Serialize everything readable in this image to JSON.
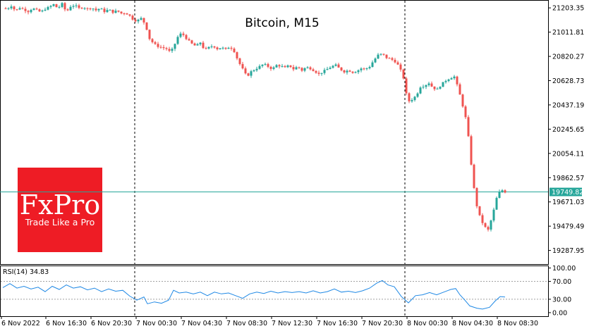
{
  "chart_data": [
    {
      "type": "candlestick",
      "title": "Bitcoin, M15",
      "ylim": [
        19180,
        21260
      ],
      "y_ticks": [
        "21203.35",
        "21011.81",
        "20820.27",
        "20628.73",
        "20437.19",
        "20245.65",
        "20054.11",
        "19862.57",
        "19671.03",
        "19479.49",
        "19287.95"
      ],
      "y_tick_values": [
        21203.35,
        21011.81,
        20820.27,
        20628.73,
        20437.19,
        20245.65,
        20054.11,
        19862.57,
        19671.03,
        19479.49,
        19287.95
      ],
      "current_price": 19749.82,
      "current_price_label": "19749.82",
      "x_ticks": [
        "6 Nov 2022",
        "6 Nov 16:30",
        "6 Nov 20:30",
        "7 Nov 00:30",
        "7 Nov 04:30",
        "7 Nov 08:30",
        "7 Nov 12:30",
        "7 Nov 16:30",
        "7 Nov 20:30",
        "8 Nov 00:30",
        "8 Nov 04:30",
        "8 Nov 08:30"
      ],
      "session_separators": [
        "7 Nov 00:00",
        "8 Nov 00:00"
      ],
      "close_path": [
        [
          0,
          21200
        ],
        [
          6,
          21195
        ],
        [
          12,
          21220
        ],
        [
          18,
          21180
        ],
        [
          24,
          21205
        ],
        [
          30,
          21190
        ],
        [
          36,
          21175
        ],
        [
          42,
          21200
        ],
        [
          48,
          21185
        ],
        [
          54,
          21170
        ],
        [
          60,
          21195
        ],
        [
          66,
          21210
        ],
        [
          72,
          21230
        ],
        [
          78,
          21200
        ],
        [
          84,
          21235
        ],
        [
          90,
          21170
        ],
        [
          96,
          21215
        ],
        [
          102,
          21225
        ],
        [
          108,
          21200
        ],
        [
          114,
          21210
        ],
        [
          120,
          21195
        ],
        [
          126,
          21205
        ],
        [
          132,
          21185
        ],
        [
          138,
          21200
        ],
        [
          144,
          21175
        ],
        [
          150,
          21190
        ],
        [
          156,
          21170
        ],
        [
          162,
          21180
        ],
        [
          168,
          21160
        ],
        [
          174,
          21165
        ],
        [
          180,
          21140
        ],
        [
          185,
          21110
        ],
        [
          190,
          21100
        ],
        [
          196,
          21120
        ],
        [
          202,
          21075
        ],
        [
          208,
          20960
        ],
        [
          214,
          20920
        ],
        [
          220,
          20900
        ],
        [
          226,
          20890
        ],
        [
          232,
          20880
        ],
        [
          238,
          20850
        ],
        [
          244,
          20920
        ],
        [
          250,
          21000
        ],
        [
          256,
          20990
        ],
        [
          262,
          20950
        ],
        [
          268,
          20920
        ],
        [
          274,
          20900
        ],
        [
          280,
          20930
        ],
        [
          286,
          20870
        ],
        [
          292,
          20890
        ],
        [
          298,
          20905
        ],
        [
          304,
          20880
        ],
        [
          310,
          20890
        ],
        [
          316,
          20875
        ],
        [
          322,
          20900
        ],
        [
          328,
          20860
        ],
        [
          334,
          20780
        ],
        [
          340,
          20720
        ],
        [
          346,
          20660
        ],
        [
          352,
          20700
        ],
        [
          358,
          20720
        ],
        [
          364,
          20740
        ],
        [
          370,
          20760
        ],
        [
          376,
          20740
        ],
        [
          382,
          20720
        ],
        [
          388,
          20750
        ],
        [
          394,
          20745
        ],
        [
          400,
          20730
        ],
        [
          406,
          20750
        ],
        [
          412,
          20720
        ],
        [
          418,
          20740
        ],
        [
          424,
          20710
        ],
        [
          430,
          20735
        ],
        [
          436,
          20725
        ],
        [
          442,
          20705
        ],
        [
          448,
          20680
        ],
        [
          454,
          20700
        ],
        [
          460,
          20720
        ],
        [
          466,
          20740
        ],
        [
          472,
          20750
        ],
        [
          478,
          20720
        ],
        [
          484,
          20700
        ],
        [
          490,
          20710
        ],
        [
          496,
          20695
        ],
        [
          502,
          20705
        ],
        [
          508,
          20725
        ],
        [
          514,
          20720
        ],
        [
          520,
          20740
        ],
        [
          526,
          20790
        ],
        [
          532,
          20830
        ],
        [
          538,
          20840
        ],
        [
          544,
          20810
        ],
        [
          550,
          20800
        ],
        [
          556,
          20780
        ],
        [
          562,
          20740
        ],
        [
          568,
          20650
        ],
        [
          574,
          20460
        ],
        [
          580,
          20480
        ],
        [
          586,
          20510
        ],
        [
          592,
          20580
        ],
        [
          598,
          20590
        ],
        [
          604,
          20610
        ],
        [
          610,
          20570
        ],
        [
          616,
          20560
        ],
        [
          622,
          20600
        ],
        [
          628,
          20630
        ],
        [
          634,
          20650
        ],
        [
          640,
          20660
        ],
        [
          646,
          20560
        ],
        [
          652,
          20430
        ],
        [
          658,
          20290
        ],
        [
          664,
          19970
        ],
        [
          670,
          19680
        ],
        [
          676,
          19560
        ],
        [
          682,
          19480
        ],
        [
          688,
          19450
        ],
        [
          694,
          19560
        ],
        [
          700,
          19700
        ],
        [
          706,
          19770
        ],
        [
          712,
          19750
        ]
      ]
    },
    {
      "type": "line",
      "title": "RSI(14) 34.83",
      "ylim": [
        -8,
        104
      ],
      "y_ticks": [
        "100.00",
        "70.00",
        "30.00",
        "0.00"
      ],
      "y_tick_values": [
        100,
        70,
        30,
        0
      ],
      "levels": [
        70,
        30
      ],
      "values": [
        [
          0,
          56
        ],
        [
          10,
          65
        ],
        [
          20,
          55
        ],
        [
          30,
          59
        ],
        [
          40,
          53
        ],
        [
          50,
          57
        ],
        [
          60,
          47
        ],
        [
          70,
          59
        ],
        [
          80,
          52
        ],
        [
          90,
          62
        ],
        [
          100,
          55
        ],
        [
          110,
          58
        ],
        [
          120,
          51
        ],
        [
          130,
          55
        ],
        [
          140,
          47
        ],
        [
          150,
          53
        ],
        [
          160,
          48
        ],
        [
          170,
          50
        ],
        [
          180,
          37
        ],
        [
          190,
          28
        ],
        [
          200,
          35
        ],
        [
          205,
          20
        ],
        [
          215,
          24
        ],
        [
          225,
          21
        ],
        [
          235,
          28
        ],
        [
          242,
          50
        ],
        [
          250,
          44
        ],
        [
          260,
          46
        ],
        [
          270,
          42
        ],
        [
          280,
          46
        ],
        [
          290,
          38
        ],
        [
          300,
          46
        ],
        [
          310,
          42
        ],
        [
          320,
          44
        ],
        [
          330,
          38
        ],
        [
          340,
          32
        ],
        [
          350,
          42
        ],
        [
          360,
          46
        ],
        [
          370,
          43
        ],
        [
          380,
          48
        ],
        [
          390,
          44
        ],
        [
          400,
          47
        ],
        [
          410,
          45
        ],
        [
          420,
          47
        ],
        [
          430,
          44
        ],
        [
          440,
          49
        ],
        [
          450,
          44
        ],
        [
          460,
          47
        ],
        [
          470,
          53
        ],
        [
          480,
          46
        ],
        [
          490,
          48
        ],
        [
          500,
          45
        ],
        [
          510,
          49
        ],
        [
          520,
          55
        ],
        [
          530,
          66
        ],
        [
          538,
          72
        ],
        [
          546,
          62
        ],
        [
          555,
          58
        ],
        [
          565,
          36
        ],
        [
          575,
          22
        ],
        [
          585,
          38
        ],
        [
          595,
          40
        ],
        [
          605,
          45
        ],
        [
          615,
          40
        ],
        [
          625,
          46
        ],
        [
          635,
          52
        ],
        [
          642,
          54
        ],
        [
          648,
          40
        ],
        [
          655,
          28
        ],
        [
          662,
          15
        ],
        [
          672,
          10
        ],
        [
          680,
          8
        ],
        [
          690,
          12
        ],
        [
          698,
          26
        ],
        [
          705,
          36
        ],
        [
          712,
          35
        ]
      ]
    }
  ],
  "logo": {
    "brand": "FxPro",
    "tagline": "Trade Like a Pro",
    "color": "#ee1c25"
  },
  "colors": {
    "bull": "#26a69a",
    "bear": "#ef5350",
    "rsi_line": "#1e88e5",
    "price_line": "#26a69a"
  }
}
